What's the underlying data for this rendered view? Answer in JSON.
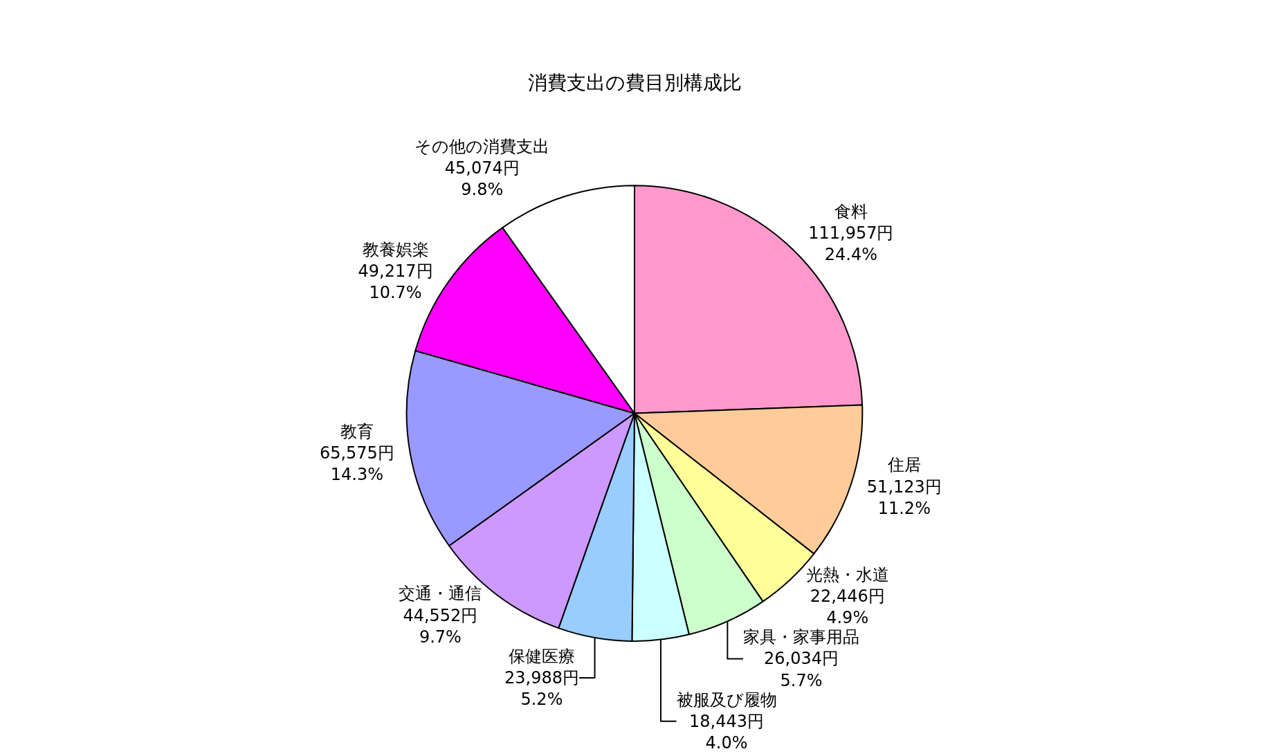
{
  "chart_data": {
    "type": "pie",
    "title": "消費支出の費目別構成比",
    "categories": [
      "食料",
      "住居",
      "光熱・水道",
      "家具・家事用品",
      "被服及び履物",
      "保健医療",
      "交通・通信",
      "教育",
      "教養娯楽",
      "その他の消費支出"
    ],
    "values": [
      111957,
      51123,
      22446,
      26034,
      18443,
      23988,
      44552,
      65575,
      49217,
      45074
    ],
    "value_labels": [
      "111,957円\n24.4%",
      "51,123円\n11.2%",
      "22,446円\n4.9%",
      "26,034円\n5.7%",
      "18,443円\n4.0%",
      "23,988円\n5.2%",
      "44,552円\n9.7%",
      "65,575円\n14.3%",
      "49,217円\n10.7%",
      "45,074円\n9.8%"
    ],
    "colors": [
      "#ff99cc",
      "#ffcc99",
      "#ffff99",
      "#ccffcc",
      "#ccffff",
      "#99ccff",
      "#cc99ff",
      "#9999ff",
      "#ff00ff",
      "#ffffff"
    ],
    "legend": false
  }
}
